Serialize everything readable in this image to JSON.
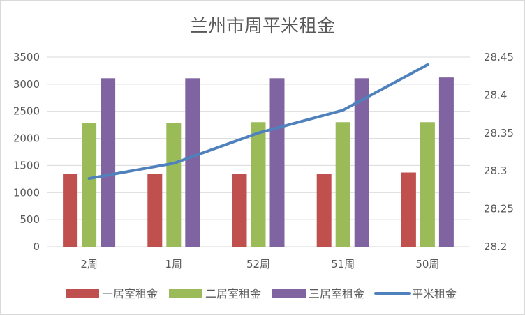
{
  "chart_data": {
    "type": "bar",
    "title": "兰州市周平米租金",
    "categories": [
      "2周",
      "1周",
      "52周",
      "51周",
      "50周"
    ],
    "series": [
      {
        "name": "一居室租金",
        "type": "bar",
        "axis": "left",
        "color": "#c0504d",
        "values": [
          1345,
          1345,
          1345,
          1345,
          1370
        ]
      },
      {
        "name": "二居室租金",
        "type": "bar",
        "axis": "left",
        "color": "#9bbb59",
        "values": [
          2290,
          2290,
          2300,
          2300,
          2300
        ]
      },
      {
        "name": "三居室租金",
        "type": "bar",
        "axis": "left",
        "color": "#8064a2",
        "values": [
          3110,
          3110,
          3110,
          3110,
          3125
        ]
      },
      {
        "name": "平米租金",
        "type": "line",
        "axis": "right",
        "color": "#4f81bd",
        "values": [
          28.29,
          28.31,
          28.35,
          28.38,
          28.44
        ]
      }
    ],
    "y_left": {
      "min": 0,
      "max": 3500,
      "ticks": [
        "0",
        "500",
        "1000",
        "1500",
        "2000",
        "2500",
        "3000",
        "3500"
      ]
    },
    "y_right": {
      "min": 28.2,
      "max": 28.45,
      "ticks": [
        "28.2",
        "28.25",
        "28.3",
        "28.35",
        "28.4",
        "28.45"
      ]
    },
    "grid": true,
    "legend_position": "bottom"
  }
}
